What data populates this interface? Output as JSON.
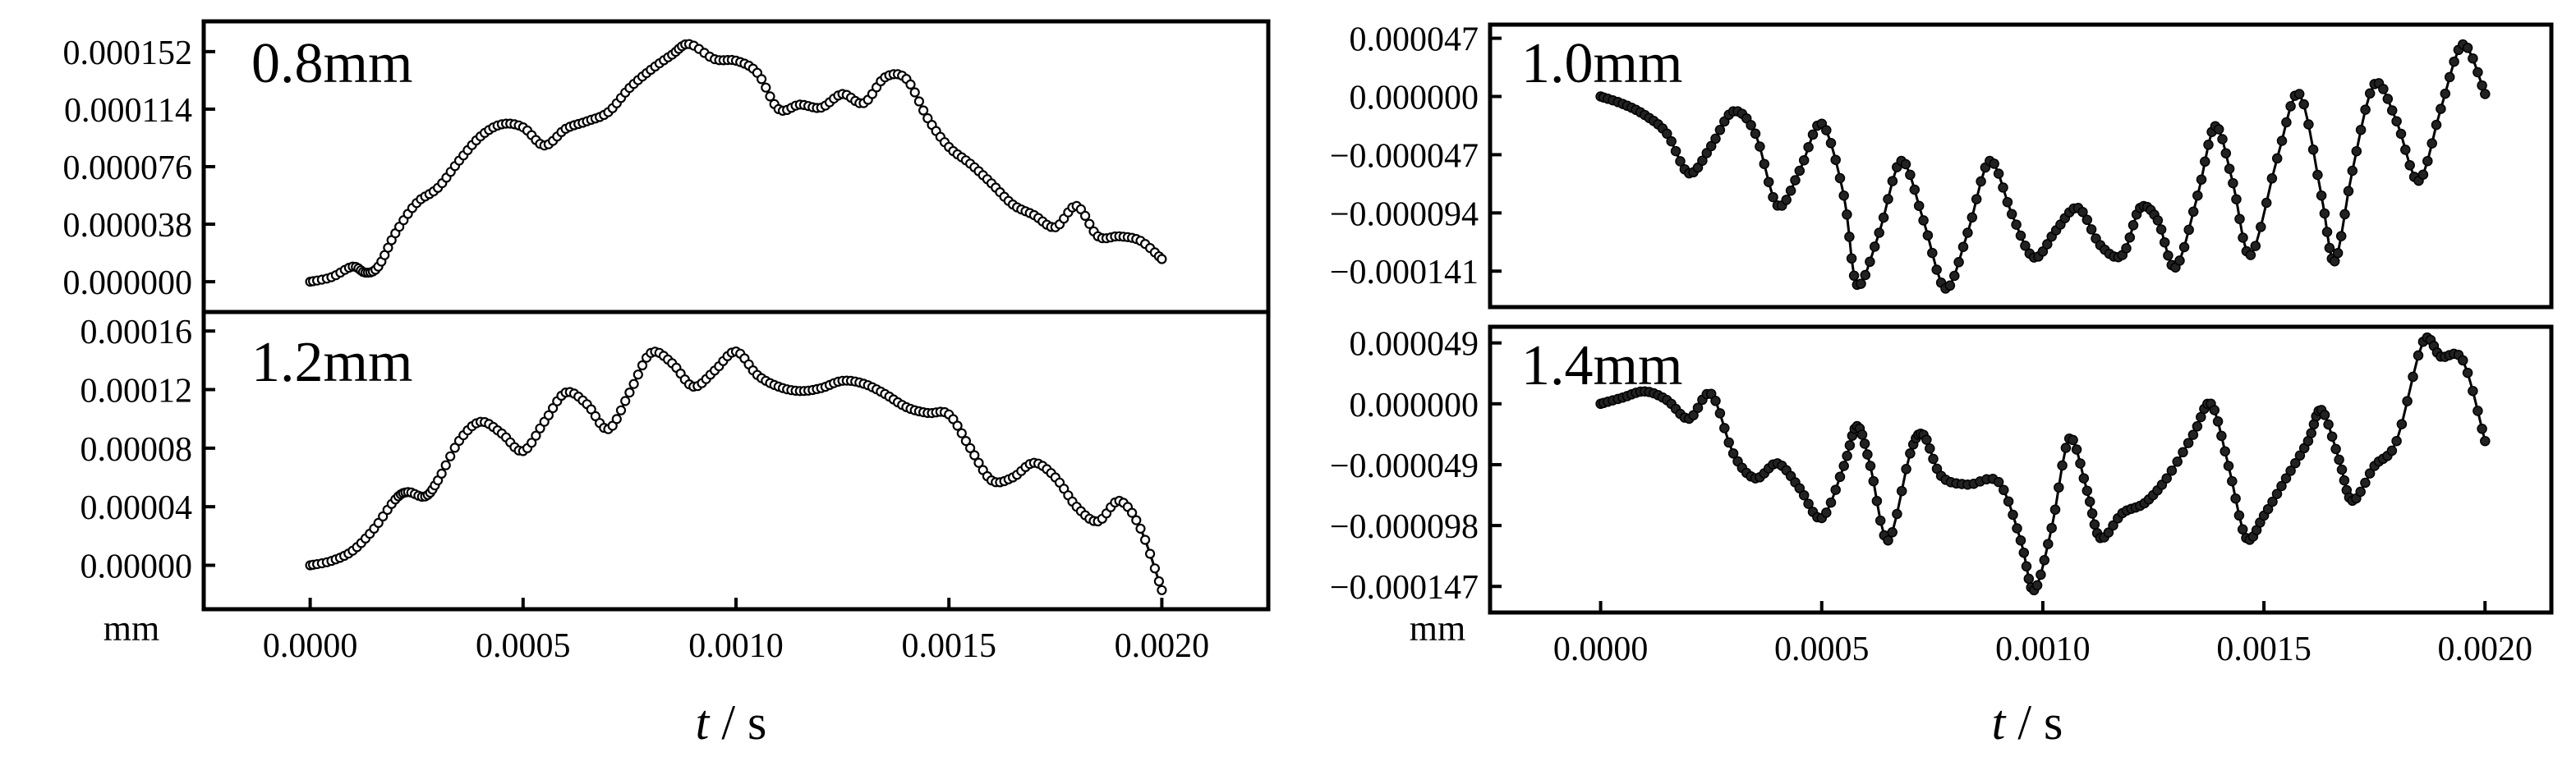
{
  "figure": {
    "left": {
      "unit": "mm",
      "xlabel_italic": "t",
      "xlabel_rest": " / s"
    },
    "right": {
      "unit": "mm",
      "xlabel_italic": "t",
      "xlabel_rest": " / s"
    }
  },
  "chart_data": [
    {
      "type": "line",
      "column": "left",
      "row": "top",
      "title": "0.8mm",
      "xlabel": "t / s",
      "ylabel": "mm",
      "xlim": [
        -0.00025,
        0.00225
      ],
      "ylim": [
        -2e-05,
        0.000172
      ],
      "x_ticks": [
        0.0,
        0.0005,
        0.001,
        0.0015,
        0.002
      ],
      "x_tick_labels": [
        "0.0000",
        "0.0005",
        "0.0010",
        "0.0015",
        "0.0020"
      ],
      "y_ticks": [
        0.0,
        3.8e-05,
        7.6e-05,
        0.000114,
        0.000152
      ],
      "y_tick_labels": [
        "0.000000",
        "0.000038",
        "0.000076",
        "0.000114",
        "0.000152"
      ],
      "marker": "open-circle",
      "keypoints": [
        [
          0.0,
          0.0
        ],
        [
          5e-05,
          3e-06
        ],
        [
          0.0001,
          1e-05
        ],
        [
          0.00013,
          6e-06
        ],
        [
          0.00016,
          1e-05
        ],
        [
          0.0002,
          3.2e-05
        ],
        [
          0.00025,
          5.2e-05
        ],
        [
          0.0003,
          6.2e-05
        ],
        [
          0.00035,
          8e-05
        ],
        [
          0.0004,
          9.6e-05
        ],
        [
          0.00045,
          0.000104
        ],
        [
          0.0005,
          0.000102
        ],
        [
          0.00055,
          9e-05
        ],
        [
          0.0006,
          0.000101
        ],
        [
          0.00065,
          0.000106
        ],
        [
          0.0007,
          0.000112
        ],
        [
          0.00075,
          0.000128
        ],
        [
          0.0008,
          0.00014
        ],
        [
          0.00085,
          0.00015
        ],
        [
          0.00089,
          0.000157
        ],
        [
          0.00095,
          0.000147
        ],
        [
          0.001,
          0.000146
        ],
        [
          0.00105,
          0.000138
        ],
        [
          0.0011,
          0.000114
        ],
        [
          0.00115,
          0.000117
        ],
        [
          0.0012,
          0.000115
        ],
        [
          0.00125,
          0.000124
        ],
        [
          0.0013,
          0.000118
        ],
        [
          0.00135,
          0.000135
        ],
        [
          0.0014,
          0.000134
        ],
        [
          0.00145,
          0.000108
        ],
        [
          0.0015,
          8.9e-05
        ],
        [
          0.00155,
          7.8e-05
        ],
        [
          0.0016,
          6.5e-05
        ],
        [
          0.00165,
          5.1e-05
        ],
        [
          0.0017,
          4.4e-05
        ],
        [
          0.00175,
          3.6e-05
        ],
        [
          0.0018,
          5e-05
        ],
        [
          0.00185,
          3e-05
        ],
        [
          0.0019,
          3e-05
        ],
        [
          0.00195,
          2.7e-05
        ],
        [
          0.002,
          1.5e-05
        ]
      ]
    },
    {
      "type": "line",
      "column": "left",
      "row": "bottom",
      "title": "1.2mm",
      "xlabel": "t / s",
      "ylabel": "mm",
      "xlim": [
        -0.00025,
        0.00225
      ],
      "ylim": [
        -3e-05,
        0.000173
      ],
      "x_ticks": [
        0.0,
        0.0005,
        0.001,
        0.0015,
        0.002
      ],
      "x_tick_labels": [
        "0.0000",
        "0.0005",
        "0.0010",
        "0.0015",
        "0.0020"
      ],
      "y_ticks": [
        0.0,
        4e-05,
        8e-05,
        0.00012,
        0.00016
      ],
      "y_tick_labels": [
        "0.00000",
        "0.00004",
        "0.00008",
        "0.00012",
        "0.00016"
      ],
      "marker": "open-circle",
      "keypoints": [
        [
          0.0,
          0.0
        ],
        [
          5e-05,
          3e-06
        ],
        [
          0.0001,
          1e-05
        ],
        [
          0.00015,
          2.5e-05
        ],
        [
          0.0002,
          4.5e-05
        ],
        [
          0.00023,
          5e-05
        ],
        [
          0.00027,
          4.7e-05
        ],
        [
          0.0003,
          5.8e-05
        ],
        [
          0.00035,
          8.5e-05
        ],
        [
          0.0004,
          9.8e-05
        ],
        [
          0.00045,
          9e-05
        ],
        [
          0.0005,
          7.8e-05
        ],
        [
          0.00055,
          9.8e-05
        ],
        [
          0.0006,
          0.000118
        ],
        [
          0.00065,
          0.00011
        ],
        [
          0.0007,
          9.3e-05
        ],
        [
          0.00075,
          0.000118
        ],
        [
          0.0008,
          0.000145
        ],
        [
          0.00085,
          0.000138
        ],
        [
          0.0009,
          0.000122
        ],
        [
          0.00095,
          0.000133
        ],
        [
          0.001,
          0.000146
        ],
        [
          0.00105,
          0.00013
        ],
        [
          0.0011,
          0.000122
        ],
        [
          0.00115,
          0.000119
        ],
        [
          0.0012,
          0.000121
        ],
        [
          0.00125,
          0.000126
        ],
        [
          0.0013,
          0.000124
        ],
        [
          0.00135,
          0.000117
        ],
        [
          0.0014,
          0.000108
        ],
        [
          0.00145,
          0.000104
        ],
        [
          0.0015,
          0.000103
        ],
        [
          0.00155,
          8e-05
        ],
        [
          0.0016,
          5.8e-05
        ],
        [
          0.00165,
          6e-05
        ],
        [
          0.0017,
          7e-05
        ],
        [
          0.00175,
          6e-05
        ],
        [
          0.0018,
          4e-05
        ],
        [
          0.00185,
          3e-05
        ],
        [
          0.0019,
          4.4e-05
        ],
        [
          0.00195,
          2.5e-05
        ],
        [
          0.002,
          -1.7e-05
        ]
      ]
    },
    {
      "type": "line",
      "column": "right",
      "row": "top",
      "title": "1.0mm",
      "xlabel": "t / s",
      "ylabel": "mm",
      "xlim": [
        -0.00025,
        0.00215
      ],
      "ylim": [
        -0.00017,
        5.8e-05
      ],
      "x_ticks": [
        0.0,
        0.0005,
        0.001,
        0.0015,
        0.002
      ],
      "x_tick_labels": [
        "0.0000",
        "0.0005",
        "0.0010",
        "0.0015",
        "0.0020"
      ],
      "y_ticks": [
        4.7e-05,
        0.0,
        -4.7e-05,
        -9.4e-05,
        -0.000141
      ],
      "y_tick_labels": [
        "0.000047",
        "0.000000",
        "−0.000047",
        "−0.000094",
        "−0.000141"
      ],
      "marker": "filled-circle",
      "keypoints": [
        [
          0.0,
          0.0
        ],
        [
          5e-05,
          -6e-06
        ],
        [
          0.0001,
          -1.5e-05
        ],
        [
          0.00015,
          -3e-05
        ],
        [
          0.0002,
          -6.2e-05
        ],
        [
          0.00025,
          -4e-05
        ],
        [
          0.0003,
          -1.2e-05
        ],
        [
          0.00035,
          -3e-05
        ],
        [
          0.0004,
          -8.8e-05
        ],
        [
          0.00045,
          -6e-05
        ],
        [
          0.0005,
          -2.2e-05
        ],
        [
          0.00055,
          -8e-05
        ],
        [
          0.00058,
          -0.000152
        ],
        [
          0.00063,
          -0.00011
        ],
        [
          0.00068,
          -5.2e-05
        ],
        [
          0.00073,
          -0.0001
        ],
        [
          0.00078,
          -0.000155
        ],
        [
          0.00083,
          -0.00011
        ],
        [
          0.00088,
          -5.2e-05
        ],
        [
          0.00093,
          -9.5e-05
        ],
        [
          0.00098,
          -0.00013
        ],
        [
          0.00103,
          -0.000108
        ],
        [
          0.00108,
          -9e-05
        ],
        [
          0.00113,
          -0.00012
        ],
        [
          0.00118,
          -0.000128
        ],
        [
          0.00122,
          -9e-05
        ],
        [
          0.00126,
          -0.0001
        ],
        [
          0.0013,
          -0.000138
        ],
        [
          0.00135,
          -8e-05
        ],
        [
          0.00139,
          -2.4e-05
        ],
        [
          0.00143,
          -7e-05
        ],
        [
          0.00147,
          -0.000128
        ],
        [
          0.00153,
          -5e-05
        ],
        [
          0.00158,
          2e-06
        ],
        [
          0.00163,
          -8e-05
        ],
        [
          0.00166,
          -0.000133
        ],
        [
          0.0017,
          -6e-05
        ],
        [
          0.00175,
          1e-05
        ],
        [
          0.0018,
          -2e-05
        ],
        [
          0.00185,
          -6.8e-05
        ],
        [
          0.0019,
          -1e-05
        ],
        [
          0.00195,
          4.2e-05
        ],
        [
          0.002,
          2e-06
        ]
      ]
    },
    {
      "type": "line",
      "column": "right",
      "row": "bottom",
      "title": "1.4mm",
      "xlabel": "t / s",
      "ylabel": "mm",
      "xlim": [
        -0.00025,
        0.00215
      ],
      "ylim": [
        -0.000168,
        6.2e-05
      ],
      "x_ticks": [
        0.0,
        0.0005,
        0.001,
        0.0015,
        0.002
      ],
      "x_tick_labels": [
        "0.0000",
        "0.0005",
        "0.0010",
        "0.0015",
        "0.0020"
      ],
      "y_ticks": [
        4.9e-05,
        0.0,
        -4.9e-05,
        -9.8e-05,
        -0.000147
      ],
      "y_tick_labels": [
        "0.000049",
        "0.000000",
        "−0.000049",
        "−0.000098",
        "−0.000147"
      ],
      "marker": "filled-circle",
      "keypoints": [
        [
          0.0,
          0.0
        ],
        [
          5e-05,
          5e-06
        ],
        [
          0.0001,
          1e-05
        ],
        [
          0.00015,
          3e-06
        ],
        [
          0.0002,
          -1.2e-05
        ],
        [
          0.00025,
          8e-06
        ],
        [
          0.0003,
          -4e-05
        ],
        [
          0.00035,
          -6e-05
        ],
        [
          0.0004,
          -4.8e-05
        ],
        [
          0.00045,
          -6.8e-05
        ],
        [
          0.0005,
          -9.2e-05
        ],
        [
          0.00055,
          -5e-05
        ],
        [
          0.00058,
          -1.8e-05
        ],
        [
          0.00061,
          -5e-05
        ],
        [
          0.00065,
          -0.00011
        ],
        [
          0.0007,
          -4e-05
        ],
        [
          0.00073,
          -2.5e-05
        ],
        [
          0.00077,
          -5.8e-05
        ],
        [
          0.00083,
          -6.5e-05
        ],
        [
          0.0009,
          -6.3e-05
        ],
        [
          0.00095,
          -0.00011
        ],
        [
          0.00098,
          -0.00015
        ],
        [
          0.00102,
          -0.0001
        ],
        [
          0.00106,
          -2.8e-05
        ],
        [
          0.0011,
          -7e-05
        ],
        [
          0.00113,
          -0.000108
        ],
        [
          0.00118,
          -8.8e-05
        ],
        [
          0.00123,
          -8e-05
        ],
        [
          0.00128,
          -6e-05
        ],
        [
          0.00134,
          -2.5e-05
        ],
        [
          0.00138,
          0.0
        ],
        [
          0.00142,
          -5e-05
        ],
        [
          0.00146,
          -0.000108
        ],
        [
          0.0015,
          -9e-05
        ],
        [
          0.00155,
          -6e-05
        ],
        [
          0.0016,
          -3e-05
        ],
        [
          0.00163,
          -5e-06
        ],
        [
          0.00167,
          -4.5e-05
        ],
        [
          0.0017,
          -7.8e-05
        ],
        [
          0.00175,
          -5e-05
        ],
        [
          0.0018,
          -3e-05
        ],
        [
          0.00186,
          5e-05
        ],
        [
          0.0019,
          3.8e-05
        ],
        [
          0.00195,
          3.5e-05
        ],
        [
          0.002,
          -3e-05
        ]
      ]
    }
  ]
}
